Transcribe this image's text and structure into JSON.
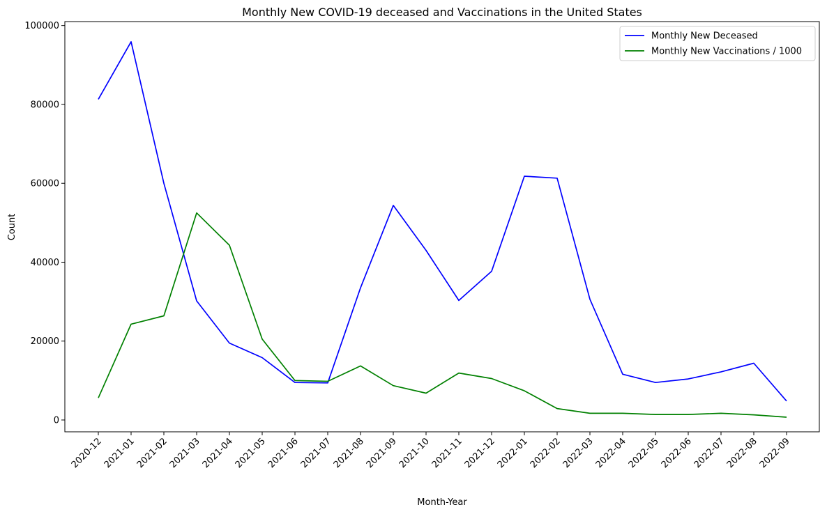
{
  "chart_data": {
    "type": "line",
    "title": "Monthly New COVID-19 deceased and Vaccinations in the United States",
    "xlabel": "Month-Year",
    "ylabel": "Count",
    "ylim": [
      -3000,
      101000
    ],
    "yticks": [
      0,
      20000,
      40000,
      60000,
      80000,
      100000
    ],
    "grid": false,
    "legend_position": "top-right",
    "categories": [
      "2020-12",
      "2021-01",
      "2021-02",
      "2021-03",
      "2021-04",
      "2021-05",
      "2021-06",
      "2021-07",
      "2021-08",
      "2021-09",
      "2021-10",
      "2021-11",
      "2021-12",
      "2022-01",
      "2022-02",
      "2022-03",
      "2022-04",
      "2022-05",
      "2022-06",
      "2022-07",
      "2022-08",
      "2022-09"
    ],
    "series": [
      {
        "name": "Monthly New Deceased",
        "color": "#0000ff",
        "values": [
          81300,
          95900,
          60000,
          30200,
          19500,
          15800,
          9500,
          9400,
          33500,
          54400,
          43000,
          30300,
          37700,
          61800,
          61300,
          30600,
          11600,
          9500,
          10400,
          12200,
          14400,
          4800
        ]
      },
      {
        "name": "Monthly New Vaccinations / 1000",
        "color": "#008000",
        "values": [
          5600,
          24300,
          26400,
          52500,
          44300,
          20500,
          10000,
          9800,
          13700,
          8700,
          6800,
          11900,
          10500,
          7400,
          2900,
          1700,
          1700,
          1400,
          1400,
          1700,
          1300,
          700
        ]
      }
    ]
  }
}
